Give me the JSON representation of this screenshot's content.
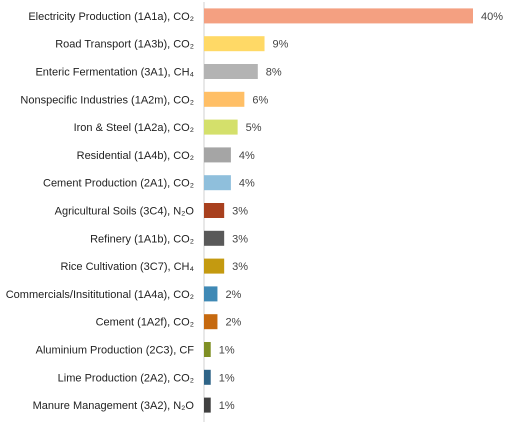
{
  "chart_data": {
    "type": "bar",
    "orientation": "horizontal",
    "title": "",
    "xlabel": "",
    "ylabel": "",
    "xlim": [
      0,
      40
    ],
    "grid": false,
    "categories": [
      "Electricity Production (1A1a), CO₂",
      "Road Transport (1A3b), CO₂",
      "Enteric Fermentation (3A1), CH₄",
      "Nonspecific Industries (1A2m), CO₂",
      "Iron & Steel (1A2a), CO₂",
      "Residential (1A4b), CO₂",
      "Cement Production (2A1), CO₂",
      "Agricultural Soils (3C4), N₂O",
      "Refinery (1A1b), CO₂",
      "Rice Cultivation (3C7), CH₄",
      "Commercials/Insititutional (1A4a), CO₂",
      "Cement (1A2f), CO₂",
      "Aluminium Production (2C3), CF",
      "Lime Production (2A2), CO₂",
      "Manure Management (3A2), N₂O"
    ],
    "values": [
      40,
      9,
      8,
      6,
      5,
      4,
      4,
      3,
      3,
      3,
      2,
      2,
      1,
      1,
      1
    ],
    "value_labels": [
      "40%",
      "9%",
      "8%",
      "6%",
      "5%",
      "4%",
      "4%",
      "3%",
      "3%",
      "3%",
      "2%",
      "2%",
      "1%",
      "1%",
      "1%"
    ],
    "colors": [
      "#f4a081",
      "#ffd966",
      "#b3b3b3",
      "#ffbf66",
      "#d4e06b",
      "#a5a5a5",
      "#8fbfdc",
      "#a8401e",
      "#595959",
      "#c49a10",
      "#3f89b5",
      "#c6690f",
      "#7f8f24",
      "#2f6487",
      "#404040"
    ]
  }
}
